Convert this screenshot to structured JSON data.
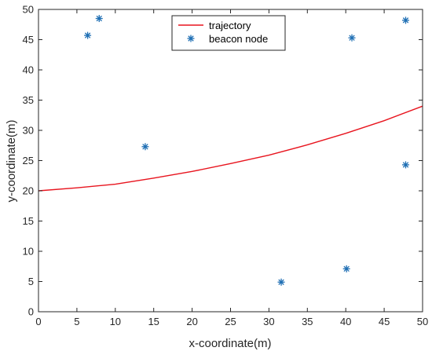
{
  "chart_data": {
    "type": "line",
    "title": "",
    "xlabel": "x-coordinate(m)",
    "ylabel": "y-coordinate(m)",
    "xlim": [
      0,
      50
    ],
    "ylim": [
      0,
      50
    ],
    "xticks": [
      0,
      5,
      10,
      15,
      20,
      25,
      30,
      35,
      40,
      45,
      50
    ],
    "yticks": [
      0,
      5,
      10,
      15,
      20,
      25,
      30,
      35,
      40,
      45,
      50
    ],
    "grid": false,
    "legend_position": "top-center",
    "series": [
      {
        "name": "trajectory",
        "kind": "line",
        "color": "#e8141e",
        "x": [
          0,
          5,
          10,
          15,
          20,
          25,
          30,
          35,
          40,
          45,
          50
        ],
        "y": [
          20.0,
          20.5,
          21.1,
          22.1,
          23.2,
          24.5,
          25.9,
          27.6,
          29.5,
          31.6,
          34.0
        ]
      },
      {
        "name": "beacon node",
        "kind": "scatter",
        "marker": "asterisk",
        "color": "#1f6fb4",
        "x": [
          6.4,
          7.9,
          13.9,
          31.6,
          40.1,
          40.8,
          47.8,
          47.8
        ],
        "y": [
          45.7,
          48.5,
          27.3,
          4.9,
          7.1,
          45.3,
          48.2,
          24.3
        ]
      }
    ]
  }
}
